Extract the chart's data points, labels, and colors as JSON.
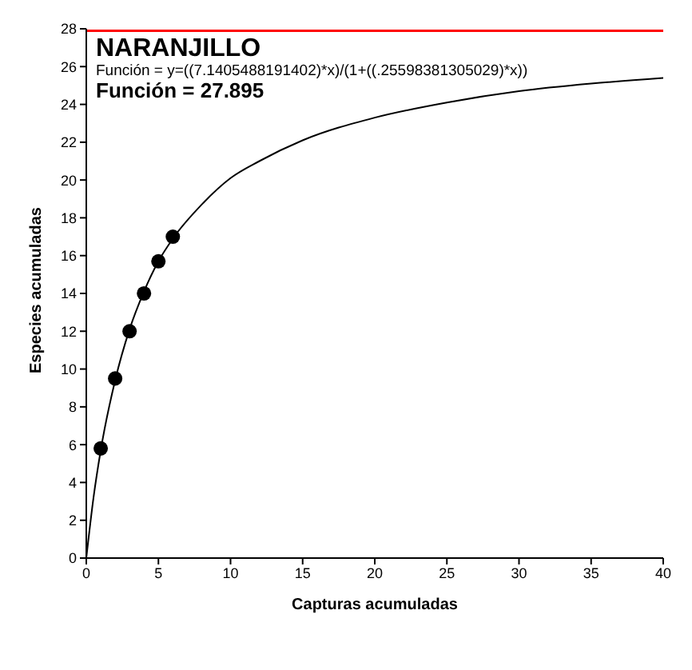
{
  "chart_data": {
    "type": "scatter",
    "title": "NARANJILLO",
    "xlabel": "Capturas acumuladas",
    "ylabel": "Especies acumuladas",
    "annotations": [
      "Función = y=((7.1405488191402)*x)/(1+((.25598381305029)*x))",
      "Función = 27.895"
    ],
    "series": [
      {
        "type": "line",
        "color": "#000000",
        "marker": "none",
        "x": [
          0,
          0.5,
          1,
          2,
          3,
          4,
          5,
          6,
          8,
          10,
          12,
          15,
          20,
          25,
          30,
          35,
          40
        ],
        "values": [
          0,
          3.2,
          5.7,
          9.4,
          12.1,
          14.1,
          15.7,
          16.9,
          18.7,
          20.1,
          21.0,
          22.1,
          23.3,
          24.1,
          24.7,
          25.1,
          25.4
        ]
      },
      {
        "color": "#000000",
        "marker": "circle",
        "x": [
          1,
          2,
          3,
          4,
          5,
          6
        ],
        "values": [
          5.8,
          9.5,
          12.0,
          14.0,
          15.7,
          17.0
        ]
      }
    ],
    "xlim": [
      0,
      40
    ],
    "xticks": [
      0,
      5,
      10,
      15,
      20,
      25,
      30,
      35,
      40
    ],
    "ylim": [
      0,
      28
    ],
    "yticks": [
      0,
      2,
      4,
      6,
      8,
      10,
      12,
      14,
      16,
      18,
      20,
      22,
      24,
      26,
      28
    ],
    "ref_lines": [
      {
        "axis": "y",
        "value": 27.895,
        "color": "#ff0000"
      }
    ],
    "grid": false,
    "legend": false
  }
}
